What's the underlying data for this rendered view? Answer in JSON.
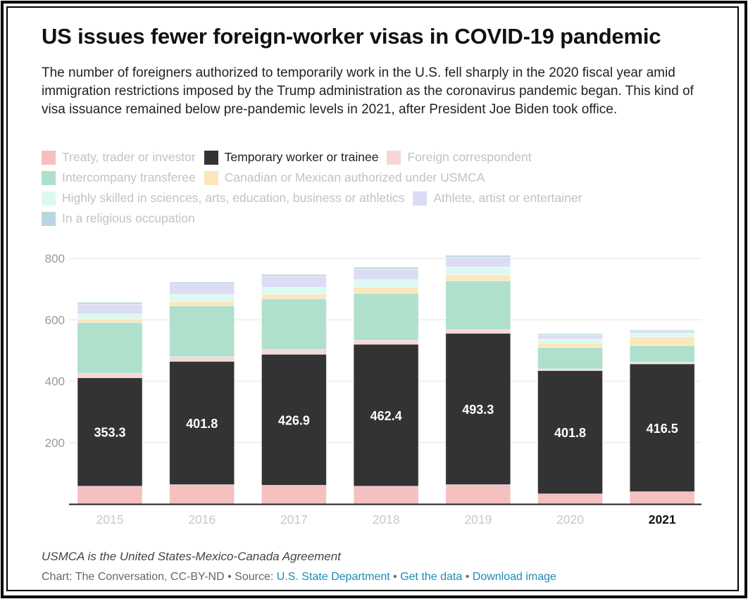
{
  "title": "US issues fewer foreign-worker visas in COVID-19 pandemic",
  "subtitle": "The number of foreigners authorized to temporarily work in the U.S. fell sharply in the 2020 fiscal year amid immigration restrictions imposed by the Trump administration as the coronavirus pandemic began. This kind of visa issuance remained below pre-pandemic levels in 2021, after President Joe Biden took office.",
  "note": "USMCA is the United States-Mexico-Canada Agreement",
  "source": {
    "prefix": "Chart: The Conversation, CC-BY-ND • Source: ",
    "link1": "U.S. State Department",
    "sep1": " • ",
    "link2": "Get the data",
    "sep2": " • ",
    "link3": "Download image"
  },
  "colors": {
    "axis": "#222222",
    "grid": "#e4e4e4",
    "tick_label": "#999999",
    "year_inactive": "#c8c8c8",
    "year_active": "#111111",
    "data_label": "#ffffff"
  },
  "chart_data": {
    "type": "bar",
    "stacked": true,
    "categories": [
      "2015",
      "2016",
      "2017",
      "2018",
      "2019",
      "2020",
      "2021"
    ],
    "highlight_category": "2021",
    "ylim": [
      0,
      820
    ],
    "yticks": [
      200,
      400,
      600,
      800
    ],
    "grid": true,
    "legend_position": "top",
    "highlight_series": "Temporary worker or trainee",
    "series": [
      {
        "name": "Treaty, trader or investor",
        "color": "#f4c0c0",
        "values": [
          58,
          63,
          61,
          58,
          63,
          33,
          40
        ]
      },
      {
        "name": "Temporary worker or trainee",
        "color": "#333333",
        "values": [
          353.3,
          401.8,
          426.9,
          462.4,
          493.3,
          401.8,
          416.5
        ],
        "labels": [
          "353.3",
          "401.8",
          "426.9",
          "462.4",
          "493.3",
          "401.8",
          "416.5"
        ]
      },
      {
        "name": "Foreign correspondent",
        "color": "#f8d6d6",
        "values": [
          14,
          15,
          15,
          13,
          11,
          5,
          5
        ]
      },
      {
        "name": "Intercompany transferee",
        "color": "#aee0cc",
        "values": [
          166,
          166,
          166,
          153,
          160,
          70,
          55
        ]
      },
      {
        "name": "Canadian or Mexican authorized under USMCA",
        "color": "#fbe7bb",
        "values": [
          12,
          15,
          15,
          20,
          20,
          15,
          28
        ]
      },
      {
        "name": "Highly skilled in sciences, arts, education, business or athletics",
        "color": "#dcfaf2",
        "values": [
          16,
          22,
          22,
          25,
          25,
          12,
          12
        ]
      },
      {
        "name": "Athlete, artist or entertainer",
        "color": "#dcdcf4",
        "values": [
          32,
          34,
          36,
          34,
          32,
          14,
          8
        ]
      },
      {
        "name": "In a religious occupation",
        "color": "#b9d7e0",
        "values": [
          6,
          6,
          6,
          6,
          6,
          4,
          3
        ]
      }
    ]
  }
}
